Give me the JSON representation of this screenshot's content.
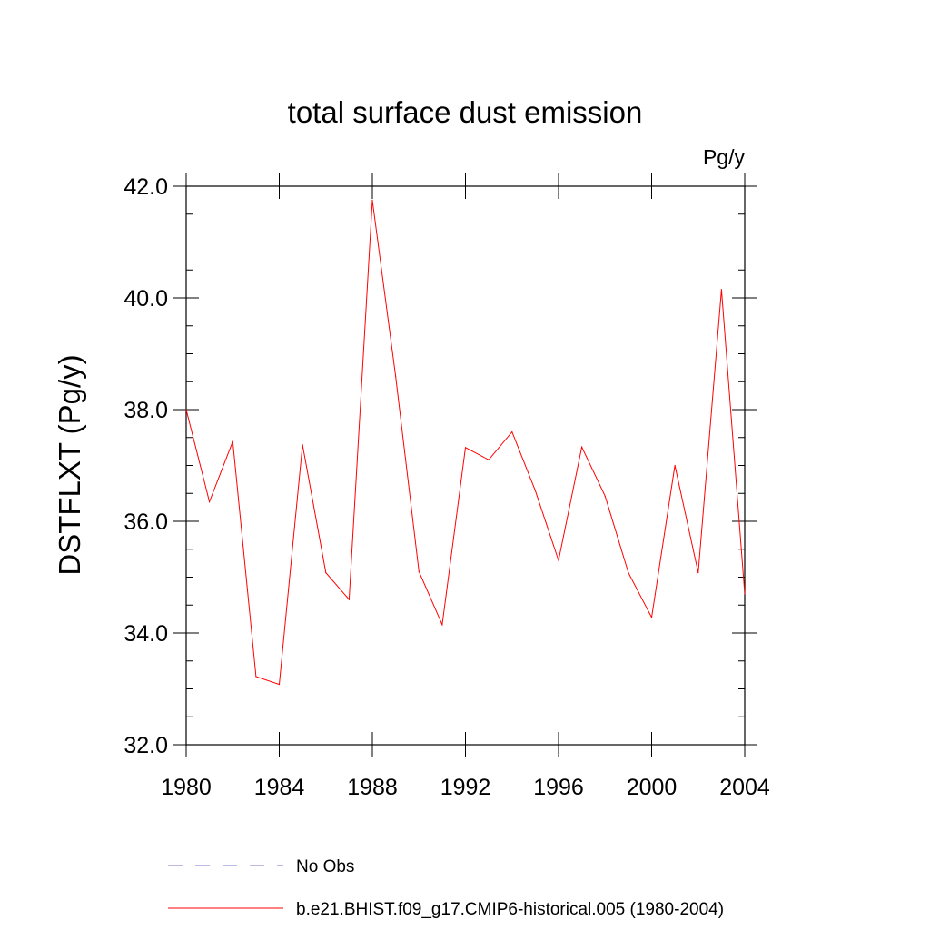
{
  "chart_data": {
    "type": "line",
    "title": "total surface dust emission",
    "units_label": "Pg/y",
    "ylabel": "DSTFLXT  (Pg/y)",
    "xlabel": "",
    "xlim": [
      1980,
      2004
    ],
    "ylim": [
      32.0,
      42.0
    ],
    "x_ticks": [
      "1980",
      "1984",
      "1988",
      "1992",
      "1996",
      "2000",
      "2004"
    ],
    "y_ticks": [
      "32.0",
      "34.0",
      "36.0",
      "38.0",
      "40.0",
      "42.0"
    ],
    "x": [
      1980,
      1981,
      1982,
      1983,
      1984,
      1985,
      1986,
      1987,
      1988,
      1989,
      1990,
      1991,
      1992,
      1993,
      1994,
      1995,
      1996,
      1997,
      1998,
      1999,
      2000,
      2001,
      2002,
      2003,
      2004
    ],
    "series": [
      {
        "name": "b.e21.BHIST.f09_g17.CMIP6-historical.005 (1980-2004)",
        "color": "#ff0000",
        "values": [
          38.0,
          36.35,
          37.43,
          33.22,
          33.08,
          37.37,
          35.08,
          34.6,
          41.75,
          38.6,
          35.1,
          34.15,
          37.32,
          37.1,
          37.6,
          36.55,
          35.3,
          37.33,
          36.45,
          35.08,
          34.28,
          37.0,
          35.08,
          40.15,
          34.7
        ]
      }
    ],
    "legend": {
      "position": "bottom",
      "entries": [
        {
          "label": "No Obs",
          "color": "#7777cc",
          "style": "dashed"
        },
        {
          "label": "b.e21.BHIST.f09_g17.CMIP6-historical.005 (1980-2004)",
          "color": "#ff0000",
          "style": "solid"
        }
      ]
    },
    "grid": false
  }
}
